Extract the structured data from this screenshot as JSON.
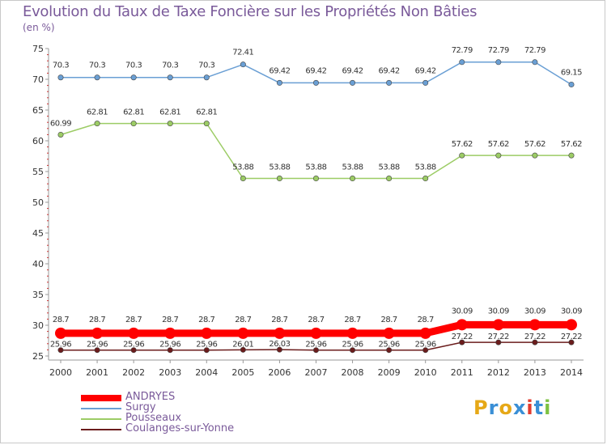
{
  "header": {
    "title": "Evolution du Taux de Taxe Foncière sur les Propriétés Non Bâties",
    "unit": "(en %)"
  },
  "logo": {
    "text": "Proxiti",
    "colors": [
      "#e6a817",
      "#3a8fd6",
      "#e6a817",
      "#3a8fd6",
      "#e23b2e",
      "#3a8fd6",
      "#7dc242"
    ]
  },
  "chart_data": {
    "type": "line",
    "title": "Evolution du Taux de Taxe Foncière sur les Propriétés Non Bâties",
    "ylabel": "(en %)",
    "xlabel": "",
    "ylim": [
      25,
      75
    ],
    "yticks": [
      25,
      30,
      35,
      40,
      45,
      50,
      55,
      60,
      65,
      70,
      75
    ],
    "categories": [
      "2000",
      "2001",
      "2002",
      "2003",
      "2004",
      "2005",
      "2006",
      "2007",
      "2008",
      "2009",
      "2010",
      "2011",
      "2012",
      "2013",
      "2014"
    ],
    "grid": false,
    "legend_position": "bottom-left",
    "series": [
      {
        "name": "ANDRYES",
        "color": "#ff0000",
        "emphasis": true,
        "values": [
          28.7,
          28.7,
          28.7,
          28.7,
          28.7,
          28.7,
          28.7,
          28.7,
          28.7,
          28.7,
          28.7,
          30.09,
          30.09,
          30.09,
          30.09
        ],
        "labels": [
          "28.7",
          "28.7",
          "28.7",
          "28.7",
          "28.7",
          "28.7",
          "28.7",
          "28.7",
          "28.7",
          "28.7",
          "28.7",
          "30.09",
          "30.09",
          "30.09",
          "30.09"
        ]
      },
      {
        "name": "Surgy",
        "color": "#6a9fd4",
        "values": [
          70.3,
          70.3,
          70.3,
          70.3,
          70.3,
          72.41,
          69.42,
          69.42,
          69.42,
          69.42,
          69.42,
          72.79,
          72.79,
          72.79,
          69.15
        ],
        "labels": [
          "70.3",
          "70.3",
          "70.3",
          "70.3",
          "70.3",
          "72.41",
          "69.42",
          "69.42",
          "69.42",
          "69.42",
          "69.42",
          "72.79",
          "72.79",
          "72.79",
          "69.15"
        ]
      },
      {
        "name": "Pousseaux",
        "color": "#9ccc65",
        "values": [
          60.99,
          62.81,
          62.81,
          62.81,
          62.81,
          53.88,
          53.88,
          53.88,
          53.88,
          53.88,
          53.88,
          57.62,
          57.62,
          57.62,
          57.62
        ],
        "labels": [
          "60.99",
          "62.81",
          "62.81",
          "62.81",
          "62.81",
          "53.88",
          "53.88",
          "53.88",
          "53.88",
          "53.88",
          "53.88",
          "57.62",
          "57.62",
          "57.62",
          "57.62"
        ]
      },
      {
        "name": "Coulanges-sur-Yonne",
        "color": "#6b1c1c",
        "values": [
          25.96,
          25.96,
          25.96,
          25.96,
          25.96,
          26.01,
          26.03,
          25.96,
          25.96,
          25.96,
          25.96,
          27.22,
          27.22,
          27.22,
          27.22
        ],
        "labels": [
          "25.96",
          "25.96",
          "25.96",
          "25.96",
          "25.96",
          "26.01",
          "26.03",
          "25.96",
          "25.96",
          "25.96",
          "25.96",
          "27.22",
          "27.22",
          "27.22",
          "27.22"
        ]
      }
    ]
  }
}
